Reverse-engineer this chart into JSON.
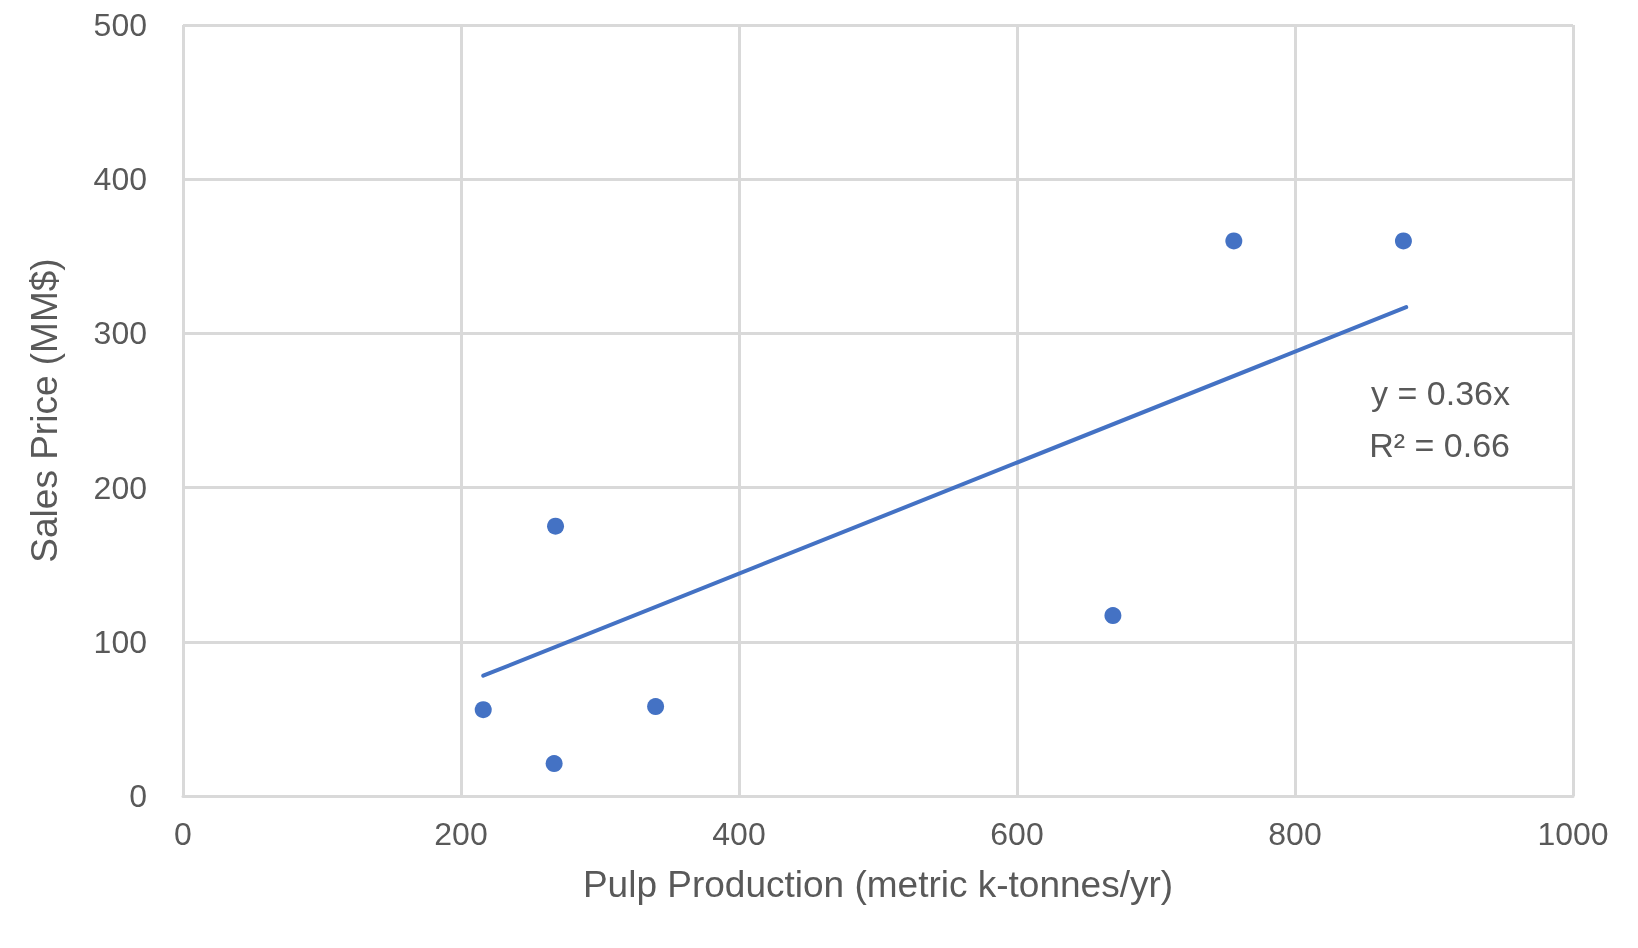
{
  "chart_data": {
    "type": "scatter",
    "xlabel": "Pulp Production (metric k-tonnes/yr)",
    "ylabel": "Sales Price (MM$)",
    "series": [
      {
        "color": "#4472c4",
        "x": [
          216,
          268,
          267,
          340,
          669,
          756,
          878
        ],
        "values": [
          56,
          175,
          21,
          58,
          117,
          360,
          360
        ],
        "marker": "circle"
      },
      {
        "type": "line",
        "color": "#4472c4",
        "x": [
          216,
          880
        ],
        "values": [
          78,
          317
        ],
        "marker": "none",
        "line_style": "solid"
      }
    ],
    "xlim": [
      0,
      1000
    ],
    "xticks": [
      0,
      200,
      400,
      600,
      800,
      1000
    ],
    "ylim": [
      0,
      500
    ],
    "yticks": [
      0,
      100,
      200,
      300,
      400,
      500
    ],
    "grid": true,
    "annotations": [
      "y = 0.36x",
      "R² = 0.66"
    ]
  }
}
